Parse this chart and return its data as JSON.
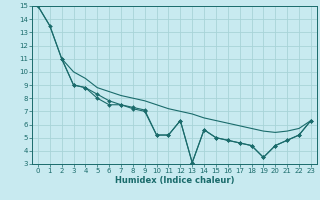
{
  "title": "",
  "xlabel": "Humidex (Indice chaleur)",
  "bg_color": "#c8eaf0",
  "grid_color": "#a8d4d8",
  "line_color": "#1a6b6b",
  "xlim": [
    -0.5,
    23.5
  ],
  "ylim": [
    3,
    15
  ],
  "xticks": [
    0,
    1,
    2,
    3,
    4,
    5,
    6,
    7,
    8,
    9,
    10,
    11,
    12,
    13,
    14,
    15,
    16,
    17,
    18,
    19,
    20,
    21,
    22,
    23
  ],
  "yticks": [
    3,
    4,
    5,
    6,
    7,
    8,
    9,
    10,
    11,
    12,
    13,
    14,
    15
  ],
  "line1_x": [
    0,
    1,
    2,
    3,
    4,
    5,
    6,
    7,
    8,
    9,
    10,
    11,
    12,
    13,
    14,
    15,
    16,
    17,
    18,
    19,
    20,
    21,
    22,
    23
  ],
  "line1_y": [
    15.0,
    13.5,
    11.0,
    9.0,
    8.8,
    8.0,
    7.5,
    7.5,
    7.2,
    7.0,
    5.2,
    5.2,
    6.3,
    3.1,
    5.6,
    5.0,
    4.8,
    4.6,
    4.4,
    3.5,
    4.4,
    4.8,
    5.2,
    6.3
  ],
  "line2_x": [
    0,
    1,
    2,
    3,
    4,
    5,
    6,
    7,
    8,
    9,
    10,
    11,
    12,
    13,
    14,
    15,
    16,
    17,
    18,
    19,
    20,
    21,
    22,
    23
  ],
  "line2_y": [
    15.0,
    13.5,
    11.0,
    10.0,
    9.5,
    8.8,
    8.5,
    8.2,
    8.0,
    7.8,
    7.5,
    7.2,
    7.0,
    6.8,
    6.5,
    6.3,
    6.1,
    5.9,
    5.7,
    5.5,
    5.4,
    5.5,
    5.7,
    6.3
  ],
  "line3_x": [
    2,
    3,
    4,
    5,
    6,
    7,
    8,
    9,
    10,
    11,
    12,
    13,
    14,
    15,
    16,
    17,
    18,
    19,
    20,
    21,
    22,
    23
  ],
  "line3_y": [
    11.0,
    9.0,
    8.8,
    8.3,
    7.8,
    7.5,
    7.3,
    7.1,
    5.2,
    5.2,
    6.3,
    3.1,
    5.6,
    5.0,
    4.8,
    4.6,
    4.4,
    3.5,
    4.4,
    4.8,
    5.2,
    6.3
  ]
}
